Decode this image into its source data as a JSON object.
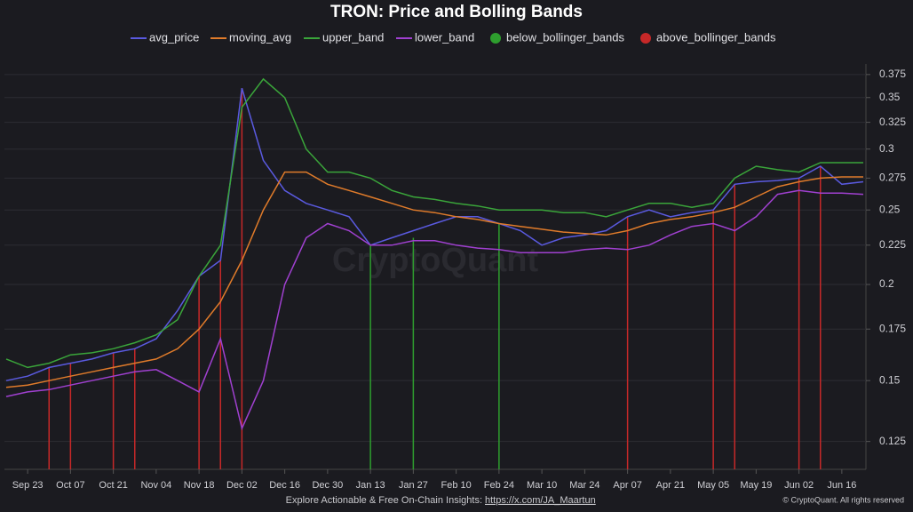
{
  "chart_data": {
    "type": "line",
    "title": "TRON: Price and Bolling Bands",
    "watermark": "CryptoQuant",
    "footer": {
      "text": "Explore Actionable & Free On-Chain Insights:",
      "link": "https://x.com/JA_Maartun",
      "copyright": "© CryptoQuant. All rights reserved"
    },
    "categories": [
      null,
      "Sep 23",
      null,
      "Oct 07",
      null,
      "Oct 21",
      null,
      "Nov 04",
      null,
      "Nov 18",
      null,
      "Dec 02",
      null,
      "Dec 16",
      null,
      "Dec 30",
      null,
      "Jan 13",
      null,
      "Jan 27",
      null,
      "Feb 10",
      null,
      "Feb 24",
      null,
      "Mar 10",
      null,
      "Mar 24",
      null,
      "Apr 07",
      null,
      "Apr 21",
      null,
      "May 05",
      null,
      "May 19",
      null,
      "Jun 02",
      null,
      "Jun 16",
      null
    ],
    "log_scale": true,
    "grid": true,
    "legend": "top",
    "ylim": [
      0.115,
      0.387
    ],
    "yticks": [
      0.125,
      0.15,
      0.175,
      0.2,
      0.225,
      0.25,
      0.275,
      0.3,
      0.325,
      0.35,
      0.375
    ],
    "series": [
      {
        "name": "avg_price",
        "color": "#5a5ae0",
        "values": [
          0.15,
          0.152,
          0.156,
          0.158,
          0.16,
          0.163,
          0.165,
          0.17,
          0.185,
          0.205,
          0.215,
          0.36,
          0.29,
          0.265,
          0.255,
          0.25,
          0.245,
          0.225,
          0.23,
          0.235,
          0.24,
          0.245,
          0.245,
          0.24,
          0.235,
          0.225,
          0.23,
          0.232,
          0.235,
          0.245,
          0.25,
          0.245,
          0.248,
          0.25,
          0.27,
          0.272,
          0.273,
          0.275,
          0.285,
          0.27,
          0.272
        ]
      },
      {
        "name": "moving_avg",
        "color": "#e07b2a",
        "values": [
          0.147,
          0.148,
          0.15,
          0.152,
          0.154,
          0.156,
          0.158,
          0.16,
          0.165,
          0.175,
          0.19,
          0.215,
          0.25,
          0.28,
          0.28,
          0.27,
          0.265,
          0.26,
          0.255,
          0.25,
          0.248,
          0.245,
          0.243,
          0.24,
          0.238,
          0.236,
          0.234,
          0.233,
          0.232,
          0.235,
          0.24,
          0.243,
          0.245,
          0.248,
          0.252,
          0.26,
          0.268,
          0.272,
          0.275,
          0.276,
          0.276
        ]
      },
      {
        "name": "upper_band",
        "color": "#3aa53a",
        "values": [
          0.16,
          0.156,
          0.158,
          0.162,
          0.163,
          0.165,
          0.168,
          0.172,
          0.18,
          0.205,
          0.225,
          0.34,
          0.37,
          0.35,
          0.3,
          0.28,
          0.28,
          0.275,
          0.265,
          0.26,
          0.258,
          0.255,
          0.253,
          0.25,
          0.25,
          0.25,
          0.248,
          0.248,
          0.245,
          0.25,
          0.255,
          0.255,
          0.252,
          0.255,
          0.275,
          0.285,
          0.282,
          0.28,
          0.288,
          0.288,
          0.288
        ]
      },
      {
        "name": "lower_band",
        "color": "#a040d0",
        "values": [
          0.143,
          0.145,
          0.146,
          0.148,
          0.15,
          0.152,
          0.154,
          0.155,
          0.15,
          0.145,
          0.17,
          0.13,
          0.15,
          0.2,
          0.23,
          0.24,
          0.235,
          0.225,
          0.225,
          0.228,
          0.228,
          0.225,
          0.223,
          0.222,
          0.22,
          0.22,
          0.22,
          0.222,
          0.223,
          0.222,
          0.225,
          0.232,
          0.238,
          0.24,
          0.235,
          0.245,
          0.262,
          0.265,
          0.263,
          0.263,
          0.262
        ]
      },
      {
        "name": "below_bollinger_bands",
        "color": "#2e9e2e",
        "marker": "event",
        "values": [
          null,
          null,
          null,
          null,
          null,
          null,
          null,
          null,
          null,
          null,
          null,
          null,
          null,
          null,
          null,
          null,
          null,
          0.225,
          null,
          0.23,
          null,
          null,
          null,
          0.24,
          null,
          null,
          null,
          null,
          null,
          null,
          null,
          null,
          null,
          null,
          null,
          null,
          null,
          null,
          null,
          null,
          null
        ]
      },
      {
        "name": "above_bollinger_bands",
        "color": "#c62828",
        "marker": "event",
        "values": [
          null,
          null,
          0.156,
          0.158,
          null,
          0.163,
          0.165,
          null,
          null,
          0.205,
          0.215,
          0.36,
          null,
          null,
          null,
          null,
          null,
          null,
          null,
          null,
          null,
          null,
          null,
          null,
          null,
          null,
          null,
          null,
          null,
          0.245,
          null,
          null,
          null,
          0.25,
          0.27,
          null,
          null,
          0.275,
          0.285,
          null,
          null
        ]
      }
    ]
  }
}
